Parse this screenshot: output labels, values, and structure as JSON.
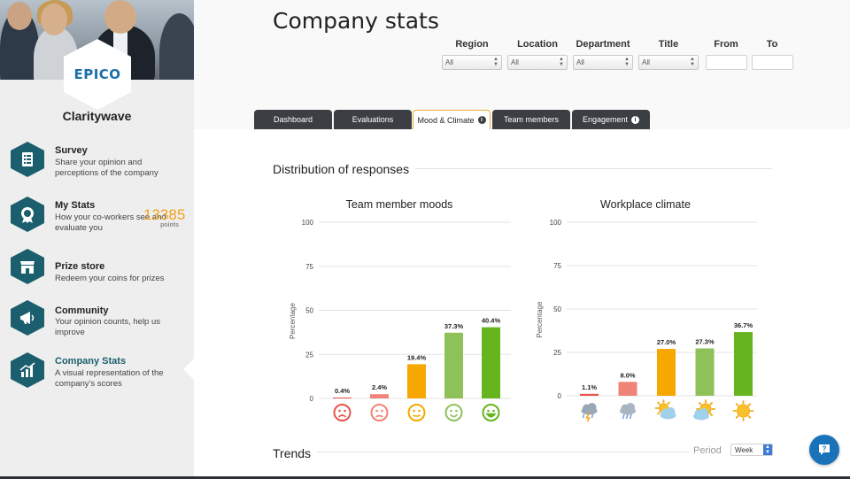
{
  "brand": {
    "logo_text": "EPICO",
    "name": "Claritywave"
  },
  "sidebar": {
    "items": [
      {
        "title": "Survey",
        "desc": "Share your opinion and perceptions of the company",
        "icon": "survey-list-icon"
      },
      {
        "title": "My Stats",
        "desc": "How your co-workers see and evaluate you",
        "icon": "badge-icon"
      },
      {
        "title": "Prize store",
        "desc": "Redeem your coins for prizes",
        "icon": "store-icon"
      },
      {
        "title": "Community",
        "desc": "Your opinion counts, help us improve",
        "icon": "megaphone-icon"
      },
      {
        "title": "Company Stats",
        "desc": "A visual representation of the company's scores",
        "icon": "bar-chart-icon",
        "active": true
      }
    ],
    "points": {
      "value": "13385",
      "label": "points"
    }
  },
  "header": {
    "title": "Company stats",
    "filters": {
      "region": {
        "label": "Region",
        "value": "All"
      },
      "location": {
        "label": "Location",
        "value": "All"
      },
      "department": {
        "label": "Department",
        "value": "All"
      },
      "title": {
        "label": "Title",
        "value": "All"
      },
      "from": {
        "label": "From",
        "value": ""
      },
      "to": {
        "label": "To",
        "value": ""
      }
    },
    "tabs": [
      {
        "label": "Dashboard"
      },
      {
        "label": "Evaluations"
      },
      {
        "label": "Mood & Climate",
        "info": "i",
        "active": true
      },
      {
        "label": "Team members"
      },
      {
        "label": "Engagement",
        "info": "i"
      }
    ]
  },
  "main": {
    "section_title": "Distribution of responses",
    "trends_title": "Trends",
    "period": {
      "label": "Period",
      "value": "Week"
    }
  },
  "colors": {
    "teal": "#1b5e6e",
    "orange": "#f0a21c",
    "red_bar": "#f08378",
    "dark_red_bar": "#e8534a",
    "yellow_bar": "#f7a800",
    "light_green_bar": "#8fc15a",
    "green_bar": "#66b51e"
  },
  "chart_data": [
    {
      "type": "bar",
      "title": "Team member moods",
      "ylabel": "Percentage",
      "ylim": [
        0,
        100
      ],
      "yticks": [
        "0",
        "25",
        "50",
        "75",
        "100"
      ],
      "categories": [
        "very-sad",
        "sad",
        "neutral",
        "happy",
        "very-happy"
      ],
      "values": [
        0.4,
        2.4,
        19.4,
        37.3,
        40.4
      ],
      "labels": [
        "0.4%",
        "2.4%",
        "19.4%",
        "37.3%",
        "40.4%"
      ],
      "colors": [
        "#e8534a",
        "#f08378",
        "#f7a800",
        "#8fc15a",
        "#66b51e"
      ],
      "grid": true,
      "legend": "none"
    },
    {
      "type": "bar",
      "title": "Workplace climate",
      "ylabel": "Percentage",
      "ylim": [
        0,
        100
      ],
      "yticks": [
        "0",
        "25",
        "50",
        "75",
        "100"
      ],
      "categories": [
        "storm",
        "rain",
        "partly-sunny",
        "mostly-sunny",
        "sunny"
      ],
      "values": [
        1.1,
        8.0,
        27.0,
        27.3,
        36.7
      ],
      "labels": [
        "1.1%",
        "8.0%",
        "27.0%",
        "27.3%",
        "36.7%"
      ],
      "colors": [
        "#e8534a",
        "#f08378",
        "#f7a800",
        "#8fc15a",
        "#66b51e"
      ],
      "grid": true,
      "legend": "none"
    }
  ]
}
